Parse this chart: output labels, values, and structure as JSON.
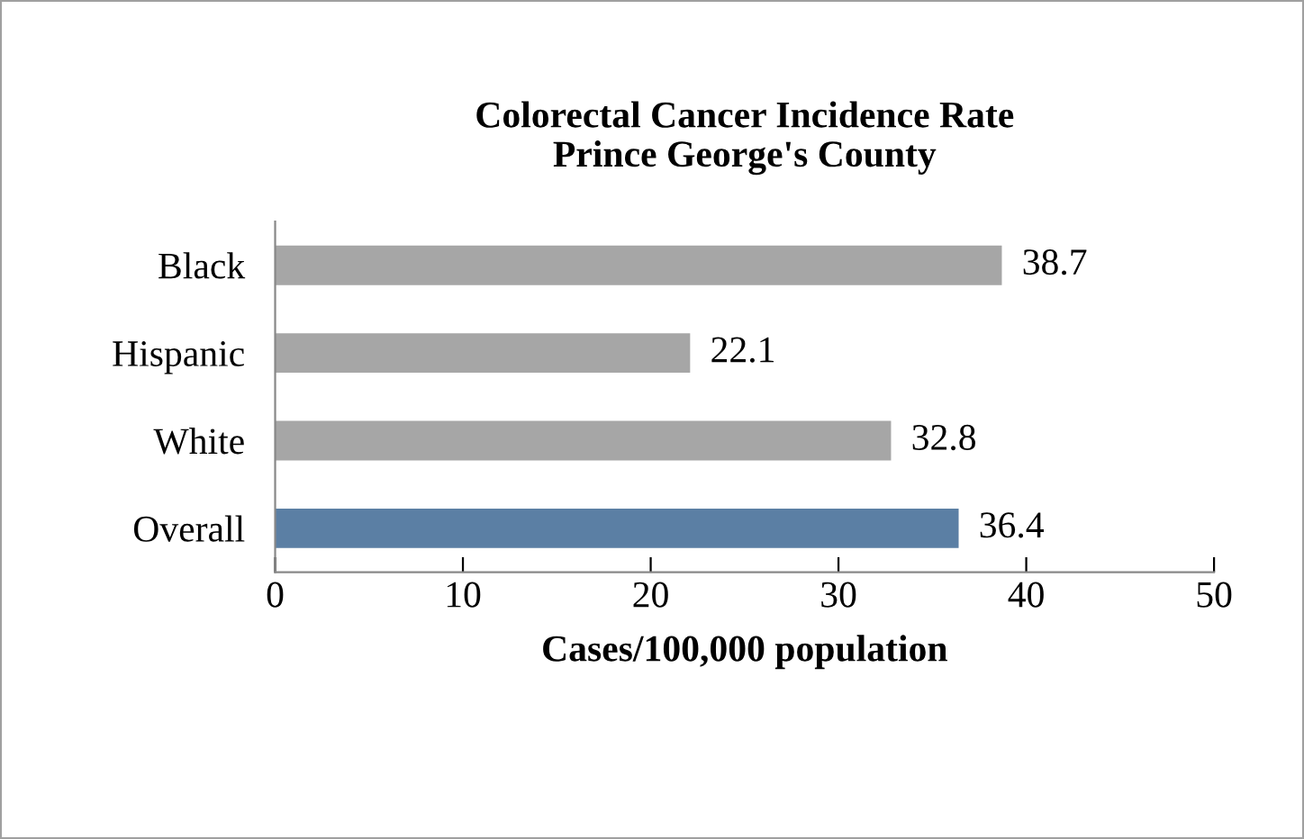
{
  "chart_data": {
    "type": "bar",
    "orientation": "horizontal",
    "title": "Colorectal Cancer Incidence Rate\nPrince George's County",
    "xlabel": "Cases/100,000 population",
    "categories": [
      "Black",
      "Hispanic",
      "White",
      "Overall"
    ],
    "values": [
      38.7,
      22.1,
      32.8,
      36.4
    ],
    "colors": [
      "#a6a6a6",
      "#a6a6a6",
      "#a6a6a6",
      "#5b7fa4"
    ],
    "xlim": [
      0,
      50
    ],
    "xticks": [
      0,
      10,
      20,
      30,
      40,
      50
    ],
    "data_labels": true,
    "grid": false
  }
}
